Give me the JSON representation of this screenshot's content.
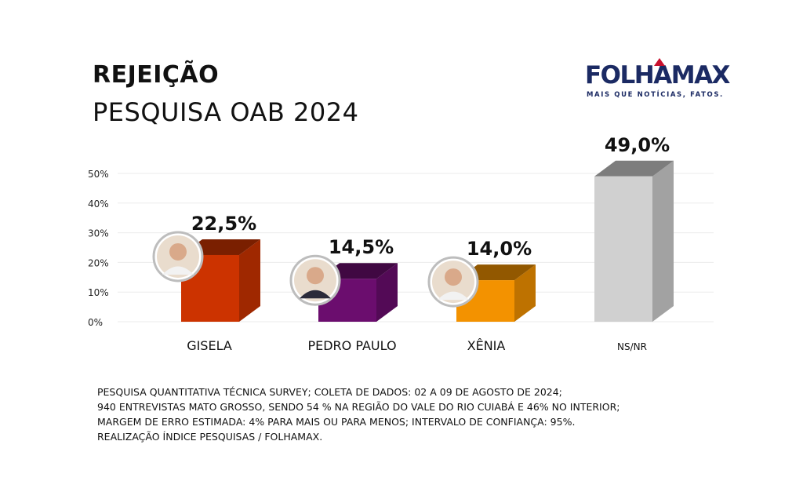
{
  "header": {
    "title": "REJEIÇÃO",
    "subtitle": "PESQUISA OAB 2024"
  },
  "logo": {
    "name": "FOLHAMAX",
    "tagline": "MAIS QUE NOTÍCIAS, FATOS."
  },
  "chart_data": {
    "type": "bar",
    "categories": [
      "GISELA",
      "PEDRO PAULO",
      "XÊNIA",
      "NS/NR"
    ],
    "values": [
      22.5,
      14.5,
      14.0,
      49.0
    ],
    "value_labels": [
      "22,5%",
      "14,5%",
      "14,0%",
      "49,0%"
    ],
    "y_ticks": [
      "0%",
      "10%",
      "20%",
      "30%",
      "40%",
      "50%"
    ],
    "ylim": [
      0,
      50
    ],
    "grid": true,
    "colors": [
      "#cc3300",
      "#6b0d6e",
      "#f39200",
      "#d0d0d0"
    ],
    "title": "",
    "xlabel": "",
    "ylabel": ""
  },
  "footer": {
    "lines": [
      "PESQUISA QUANTITATIVA TÉCNICA SURVEY; COLETA DE DADOS: 02 A 09 DE AGOSTO DE 2024;",
      "940 ENTREVISTAS MATO GROSSO, SENDO 54 % NA REGIÃO DO VALE DO RIO CUIABÁ E 46% NO INTERIOR;",
      "MARGEM DE ERRO ESTIMADA: 4% PARA MAIS OU PARA MENOS; INTERVALO DE CONFIANÇA: 95%.",
      "REALIZAÇÃO ÍNDICE PESQUISAS / FOLHAMAX."
    ]
  }
}
